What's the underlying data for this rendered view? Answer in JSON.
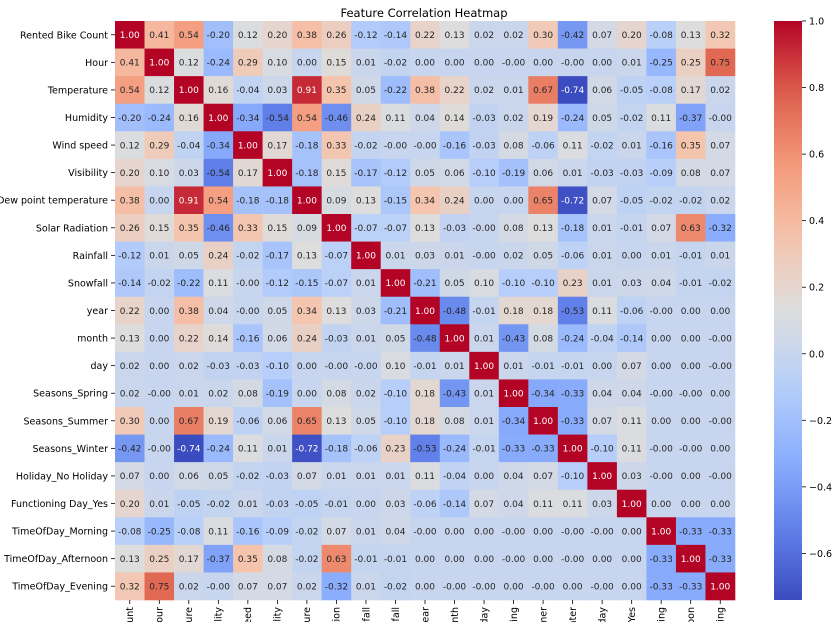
{
  "chart_data": {
    "type": "heatmap",
    "title": "Feature Correlation Heatmap",
    "xlabel": "",
    "ylabel": "",
    "row_labels": [
      "Rented Bike Count",
      "Hour",
      "Temperature",
      "Humidity",
      "Wind speed",
      "Visibility",
      "Dew point temperature",
      "Solar Radiation",
      "Rainfall",
      "Snowfall",
      "year",
      "month",
      "day",
      "Seasons_Spring",
      "Seasons_Summer",
      "Seasons_Winter",
      "Holiday_No Holiday",
      "Functioning Day_Yes",
      "TimeOfDay_Morning",
      "TimeOfDay_Afternoon",
      "TimeOfDay_Evening"
    ],
    "col_labels": [
      "unt",
      "our",
      "ure",
      "lity",
      "eed",
      "lity",
      "ure",
      "tion",
      "fall",
      "fall",
      "ear",
      "nth",
      "day",
      "ring",
      "mer",
      "nter",
      "day",
      "Yes",
      "ning",
      "oon",
      "ning"
    ],
    "values": [
      [
        1.0,
        0.41,
        0.54,
        -0.2,
        0.12,
        0.2,
        0.38,
        0.26,
        -0.12,
        -0.14,
        0.22,
        0.13,
        0.02,
        0.02,
        0.3,
        -0.42,
        0.07,
        0.2,
        -0.08,
        0.13,
        0.32
      ],
      [
        0.41,
        1.0,
        0.12,
        -0.24,
        0.29,
        0.1,
        0.0,
        0.15,
        0.01,
        -0.02,
        0.0,
        0.0,
        0.0,
        -0.0,
        0.0,
        -0.0,
        0.0,
        0.01,
        -0.25,
        0.25,
        0.75
      ],
      [
        0.54,
        0.12,
        1.0,
        0.16,
        -0.04,
        0.03,
        0.91,
        0.35,
        0.05,
        -0.22,
        0.38,
        0.22,
        0.02,
        0.01,
        0.67,
        -0.74,
        0.06,
        -0.05,
        -0.08,
        0.17,
        0.02
      ],
      [
        -0.2,
        -0.24,
        0.16,
        1.0,
        -0.34,
        -0.54,
        0.54,
        -0.46,
        0.24,
        0.11,
        0.04,
        0.14,
        -0.03,
        0.02,
        0.19,
        -0.24,
        0.05,
        -0.02,
        0.11,
        -0.37,
        -0.0
      ],
      [
        0.12,
        0.29,
        -0.04,
        -0.34,
        1.0,
        0.17,
        -0.18,
        0.33,
        -0.02,
        -0.0,
        -0.0,
        -0.16,
        -0.03,
        0.08,
        -0.06,
        0.11,
        -0.02,
        0.01,
        -0.16,
        0.35,
        0.07
      ],
      [
        0.2,
        0.1,
        0.03,
        -0.54,
        0.17,
        1.0,
        -0.18,
        0.15,
        -0.17,
        -0.12,
        0.05,
        0.06,
        -0.1,
        -0.19,
        0.06,
        0.01,
        -0.03,
        -0.03,
        -0.09,
        0.08,
        0.07
      ],
      [
        0.38,
        0.0,
        0.91,
        0.54,
        -0.18,
        -0.18,
        1.0,
        0.09,
        0.13,
        -0.15,
        0.34,
        0.24,
        0.0,
        0.0,
        0.65,
        -0.72,
        0.07,
        -0.05,
        -0.02,
        -0.02,
        0.02
      ],
      [
        0.26,
        0.15,
        0.35,
        -0.46,
        0.33,
        0.15,
        0.09,
        1.0,
        -0.07,
        -0.07,
        0.13,
        -0.03,
        -0.0,
        0.08,
        0.13,
        -0.18,
        0.01,
        -0.01,
        0.07,
        0.63,
        -0.32
      ],
      [
        -0.12,
        0.01,
        0.05,
        0.24,
        -0.02,
        -0.17,
        0.13,
        -0.07,
        1.0,
        0.01,
        0.03,
        0.01,
        -0.0,
        0.02,
        0.05,
        -0.06,
        0.01,
        0.0,
        0.01,
        -0.01,
        0.01
      ],
      [
        -0.14,
        -0.02,
        -0.22,
        0.11,
        -0.0,
        -0.12,
        -0.15,
        -0.07,
        0.01,
        1.0,
        -0.21,
        0.05,
        0.1,
        -0.1,
        -0.1,
        0.23,
        0.01,
        0.03,
        0.04,
        -0.01,
        -0.02
      ],
      [
        0.22,
        0.0,
        0.38,
        0.04,
        -0.0,
        0.05,
        0.34,
        0.13,
        0.03,
        -0.21,
        1.0,
        -0.48,
        -0.01,
        0.18,
        0.18,
        -0.53,
        0.11,
        -0.06,
        -0.0,
        0.0,
        0.0
      ],
      [
        0.13,
        0.0,
        0.22,
        0.14,
        -0.16,
        0.06,
        0.24,
        -0.03,
        0.01,
        0.05,
        -0.48,
        1.0,
        0.01,
        -0.43,
        0.08,
        -0.24,
        -0.04,
        -0.14,
        0.0,
        0.0,
        -0.0
      ],
      [
        0.02,
        0.0,
        0.02,
        -0.03,
        -0.03,
        -0.1,
        0.0,
        -0.0,
        -0.0,
        0.1,
        -0.01,
        0.01,
        1.0,
        0.01,
        -0.01,
        -0.01,
        0.0,
        0.07,
        0.0,
        0.0,
        -0.0
      ],
      [
        0.02,
        -0.0,
        0.01,
        0.02,
        0.08,
        -0.19,
        0.0,
        0.08,
        0.02,
        -0.1,
        0.18,
        -0.43,
        0.01,
        1.0,
        -0.34,
        -0.33,
        0.04,
        0.04,
        -0.0,
        -0.0,
        0.0
      ],
      [
        0.3,
        0.0,
        0.67,
        0.19,
        -0.06,
        0.06,
        0.65,
        0.13,
        0.05,
        -0.1,
        0.18,
        0.08,
        0.01,
        -0.34,
        1.0,
        -0.33,
        0.07,
        0.11,
        0.0,
        0.0,
        -0.0
      ],
      [
        -0.42,
        -0.0,
        -0.74,
        -0.24,
        0.11,
        0.01,
        -0.72,
        -0.18,
        -0.06,
        0.23,
        -0.53,
        -0.24,
        -0.01,
        -0.33,
        -0.33,
        1.0,
        -0.1,
        0.11,
        -0.0,
        -0.0,
        0.0
      ],
      [
        0.07,
        0.0,
        0.06,
        0.05,
        -0.02,
        -0.03,
        0.07,
        0.01,
        0.01,
        0.01,
        0.11,
        -0.04,
        0.0,
        0.04,
        0.07,
        -0.1,
        1.0,
        0.03,
        -0.0,
        0.0,
        -0.0
      ],
      [
        0.2,
        0.01,
        -0.05,
        -0.02,
        0.01,
        -0.03,
        -0.05,
        -0.01,
        0.0,
        0.03,
        -0.06,
        -0.14,
        0.07,
        0.04,
        0.11,
        0.11,
        0.03,
        1.0,
        0.0,
        0.0,
        0.0
      ],
      [
        -0.08,
        -0.25,
        -0.08,
        0.11,
        -0.16,
        -0.09,
        -0.02,
        0.07,
        0.01,
        0.04,
        -0.0,
        0.0,
        0.0,
        -0.0,
        0.0,
        -0.0,
        -0.0,
        0.0,
        1.0,
        -0.33,
        -0.33
      ],
      [
        0.13,
        0.25,
        0.17,
        -0.37,
        0.35,
        0.08,
        -0.02,
        0.63,
        -0.01,
        -0.01,
        0.0,
        0.0,
        0.0,
        -0.0,
        0.0,
        -0.0,
        0.0,
        0.0,
        -0.33,
        1.0,
        -0.33
      ],
      [
        0.32,
        0.75,
        0.02,
        -0.0,
        0.07,
        0.07,
        0.02,
        -0.32,
        0.01,
        -0.02,
        0.0,
        -0.0,
        -0.0,
        0.0,
        -0.0,
        0.0,
        -0.0,
        0.0,
        -0.33,
        -0.33,
        1.0
      ]
    ],
    "colorbar": {
      "min": -0.74,
      "max": 1.0,
      "ticks": [
        1.0,
        0.8,
        0.6,
        0.4,
        0.2,
        0.0,
        -0.2,
        -0.4,
        -0.6
      ],
      "tick_labels": [
        "1.0",
        "0.8",
        "0.6",
        "0.4",
        "0.2",
        "0.0",
        "−0.2",
        "−0.4",
        "−0.6"
      ],
      "colormap": "coolwarm",
      "color_low": "#3b4cc0",
      "color_mid": "#dddddd",
      "color_high": "#b40426"
    }
  }
}
